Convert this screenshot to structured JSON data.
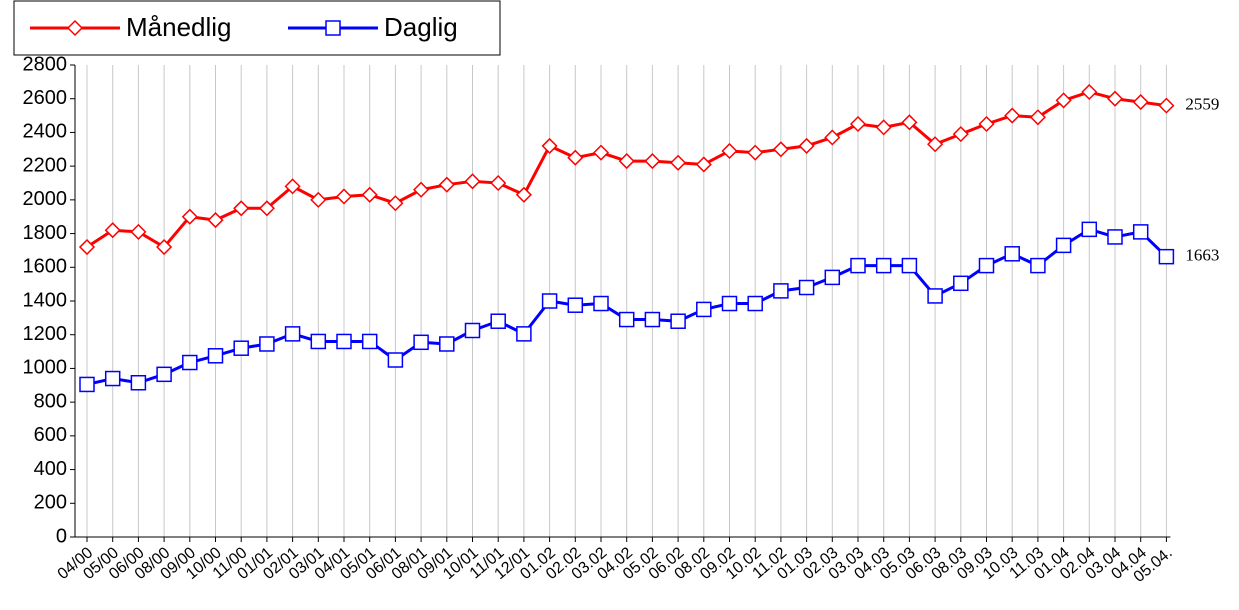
{
  "chart_data": {
    "type": "line",
    "categories": [
      "04/00",
      "05/00",
      "06/00",
      "08/00",
      "09/00",
      "10/00",
      "11/00",
      "01/01",
      "02/01",
      "03/01",
      "04/01",
      "05/01",
      "06/01",
      "08/01",
      "09/01",
      "10/01",
      "11/01",
      "12/01",
      "01.02",
      "02.02",
      "03.02",
      "04.02",
      "05.02",
      "06.02",
      "08.02",
      "09.02",
      "10.02",
      "11.02",
      "01.03",
      "02.03",
      "03.03",
      "04.03",
      "05.03",
      "06.03",
      "08.03",
      "09.03",
      "10.03",
      "11.03",
      "01.04",
      "02.04",
      "03.04",
      "04.04",
      "05.04."
    ],
    "series": [
      {
        "name": "Månedlig",
        "color": "#ff0000",
        "marker": "diamond",
        "values": [
          1720,
          1820,
          1810,
          1720,
          1900,
          1880,
          1950,
          1950,
          2080,
          2000,
          2020,
          2030,
          1980,
          2060,
          2090,
          2110,
          2100,
          2030,
          2320,
          2250,
          2280,
          2230,
          2230,
          2220,
          2210,
          2290,
          2280,
          2300,
          2320,
          2370,
          2450,
          2430,
          2460,
          2330,
          2390,
          2450,
          2500,
          2490,
          2590,
          2640,
          2600,
          2580,
          2559
        ]
      },
      {
        "name": "Daglig",
        "color": "#0000ff",
        "marker": "square",
        "values": [
          905,
          940,
          915,
          965,
          1035,
          1075,
          1120,
          1145,
          1205,
          1160,
          1160,
          1160,
          1050,
          1155,
          1145,
          1225,
          1280,
          1205,
          1400,
          1375,
          1385,
          1290,
          1290,
          1280,
          1350,
          1385,
          1385,
          1460,
          1480,
          1540,
          1610,
          1610,
          1610,
          1430,
          1505,
          1610,
          1680,
          1610,
          1730,
          1825,
          1780,
          1810,
          1663
        ]
      }
    ],
    "ylim": [
      0,
      2800
    ],
    "yticks": [
      0,
      200,
      400,
      600,
      800,
      1000,
      1200,
      1400,
      1600,
      1800,
      2000,
      2200,
      2400,
      2600,
      2800
    ],
    "grid": true
  }
}
